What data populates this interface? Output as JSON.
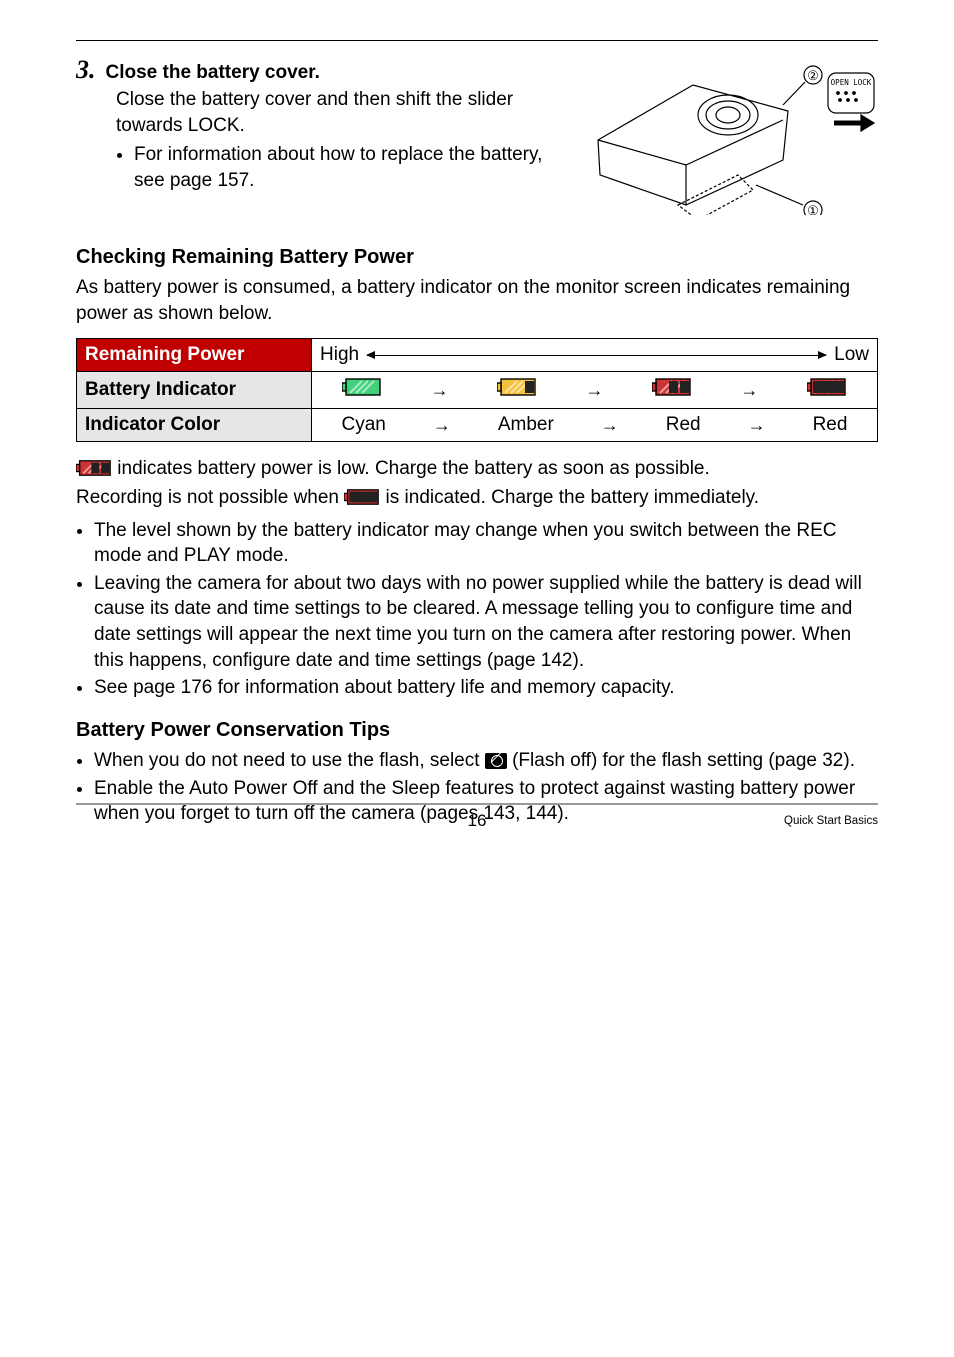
{
  "step": {
    "number": "3.",
    "title": "Close the battery cover.",
    "body": "Close the battery cover and then shift the slider towards LOCK.",
    "sub": "For information about how to replace the battery, see page 157."
  },
  "diagram": {
    "label_top": "②",
    "label_bottom": "①",
    "switch_text": "OPEN LOCK"
  },
  "section_check": {
    "heading": "Checking Remaining Battery Power",
    "intro": "As battery power is consumed, a battery indicator on the monitor screen indicates remaining power as shown below."
  },
  "table": {
    "rows": {
      "power": {
        "header": "Remaining Power",
        "left": "High",
        "right": "Low"
      },
      "indicator": {
        "header": "Battery Indicator",
        "icons": [
          {
            "fill": "#41d17a",
            "bars": 3,
            "border": "#2e9e5b"
          },
          {
            "fill": "#f5c23d",
            "bars": 2,
            "border": "#c29327"
          },
          {
            "fill": "#cc3333",
            "bars": 1,
            "border": "#8e2222"
          },
          {
            "fill": "#cc3333",
            "bars": 0,
            "border": "#8e2222"
          }
        ]
      },
      "color": {
        "header": "Indicator Color",
        "values": [
          "Cyan",
          "Amber",
          "Red",
          "Red"
        ]
      }
    }
  },
  "after_table": {
    "line1_a": " indicates battery power is low. Charge the battery as soon as possible.",
    "line2_a": "Recording is not possible when ",
    "line2_b": " is indicated. Charge the battery immediately.",
    "bullets": [
      "The level shown by the battery indicator may change when you switch between the REC mode and PLAY mode.",
      "Leaving the camera for about two days with no power supplied while the battery is dead will cause its date and time settings to be cleared. A message telling you to configure time and date settings will appear the next time you turn on the camera after restoring power. When this happens, configure date and time settings (page 142).",
      "See page 176 for information about battery life and memory capacity."
    ],
    "low_icon": {
      "fill": "#cc3333",
      "bars": 1,
      "border": "#8e2222"
    },
    "empty_icon": {
      "fill": "#cc3333",
      "bars": 0,
      "border": "#8e2222"
    }
  },
  "tips": {
    "heading": "Battery Power Conservation Tips",
    "items_a": "When you do not need to use the flash, select ",
    "items_b": " (Flash off) for the flash setting (page 32).",
    "item2": "Enable the Auto Power Off and the Sleep features to protect against wasting battery power when you forget to turn off the camera (pages 143, 144)."
  },
  "footer": {
    "page": "16",
    "label": "Quick Start Basics"
  }
}
